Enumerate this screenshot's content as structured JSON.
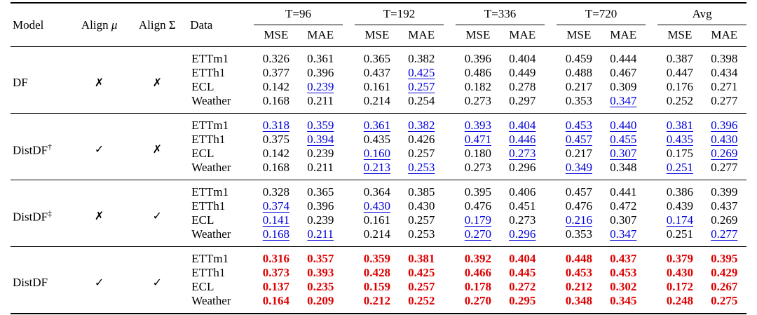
{
  "table": {
    "header": {
      "model": "Model",
      "align_mu": {
        "label": "Align",
        "symbol": "μ"
      },
      "align_sigma": {
        "label": "Align",
        "symbol": "Σ"
      },
      "data": "Data",
      "groups": [
        "T=96",
        "T=192",
        "T=336",
        "T=720",
        "Avg"
      ],
      "metrics": [
        "MSE",
        "MAE"
      ]
    },
    "colors": {
      "best": "#dd0000",
      "second_best": "#0000dd",
      "text": "#000000",
      "rule": "#000000"
    },
    "flags": {
      "yes": "✓",
      "no": "✗"
    },
    "blocks": [
      {
        "model": "DF",
        "model_sup": "",
        "align_mu": "✗",
        "align_sigma": "✗",
        "rows": [
          {
            "dataset": "ETTm1",
            "values": [
              "0.326",
              "0.361",
              "0.365",
              "0.382",
              "0.396",
              "0.404",
              "0.459",
              "0.444",
              "0.387",
              "0.398"
            ],
            "styles": [
              "n",
              "n",
              "n",
              "n",
              "n",
              "n",
              "n",
              "n",
              "n",
              "n"
            ]
          },
          {
            "dataset": "ETTh1",
            "values": [
              "0.377",
              "0.396",
              "0.437",
              "0.425",
              "0.486",
              "0.449",
              "0.488",
              "0.467",
              "0.447",
              "0.434"
            ],
            "styles": [
              "n",
              "n",
              "n",
              "u",
              "n",
              "n",
              "n",
              "n",
              "n",
              "n"
            ]
          },
          {
            "dataset": "ECL",
            "values": [
              "0.142",
              "0.239",
              "0.161",
              "0.257",
              "0.182",
              "0.278",
              "0.217",
              "0.309",
              "0.176",
              "0.271"
            ],
            "styles": [
              "n",
              "u",
              "n",
              "u",
              "n",
              "n",
              "n",
              "n",
              "n",
              "n"
            ]
          },
          {
            "dataset": "Weather",
            "values": [
              "0.168",
              "0.211",
              "0.214",
              "0.254",
              "0.273",
              "0.297",
              "0.353",
              "0.347",
              "0.252",
              "0.277"
            ],
            "styles": [
              "n",
              "n",
              "n",
              "n",
              "n",
              "n",
              "n",
              "u",
              "n",
              "n"
            ]
          }
        ]
      },
      {
        "model": "DistDF",
        "model_sup": "†",
        "align_mu": "✓",
        "align_sigma": "✗",
        "rows": [
          {
            "dataset": "ETTm1",
            "values": [
              "0.318",
              "0.359",
              "0.361",
              "0.382",
              "0.393",
              "0.404",
              "0.453",
              "0.440",
              "0.381",
              "0.396"
            ],
            "styles": [
              "u",
              "u",
              "u",
              "u",
              "u",
              "u",
              "u",
              "u",
              "u",
              "u"
            ]
          },
          {
            "dataset": "ETTh1",
            "values": [
              "0.375",
              "0.394",
              "0.435",
              "0.426",
              "0.471",
              "0.446",
              "0.457",
              "0.455",
              "0.435",
              "0.430"
            ],
            "styles": [
              "n",
              "u",
              "n",
              "n",
              "u",
              "u",
              "u",
              "u",
              "u",
              "u"
            ]
          },
          {
            "dataset": "ECL",
            "values": [
              "0.142",
              "0.239",
              "0.160",
              "0.257",
              "0.180",
              "0.273",
              "0.217",
              "0.307",
              "0.175",
              "0.269"
            ],
            "styles": [
              "n",
              "n",
              "u",
              "n",
              "n",
              "u",
              "n",
              "u",
              "n",
              "u"
            ]
          },
          {
            "dataset": "Weather",
            "values": [
              "0.168",
              "0.211",
              "0.213",
              "0.253",
              "0.273",
              "0.296",
              "0.349",
              "0.348",
              "0.251",
              "0.277"
            ],
            "styles": [
              "n",
              "n",
              "u",
              "u",
              "n",
              "n",
              "u",
              "n",
              "u",
              "n"
            ]
          }
        ]
      },
      {
        "model": "DistDF",
        "model_sup": "‡",
        "align_mu": "✗",
        "align_sigma": "✓",
        "rows": [
          {
            "dataset": "ETTm1",
            "values": [
              "0.328",
              "0.365",
              "0.364",
              "0.385",
              "0.395",
              "0.406",
              "0.457",
              "0.441",
              "0.386",
              "0.399"
            ],
            "styles": [
              "n",
              "n",
              "n",
              "n",
              "n",
              "n",
              "n",
              "n",
              "n",
              "n"
            ]
          },
          {
            "dataset": "ETTh1",
            "values": [
              "0.374",
              "0.396",
              "0.430",
              "0.430",
              "0.476",
              "0.451",
              "0.476",
              "0.472",
              "0.439",
              "0.437"
            ],
            "styles": [
              "u",
              "n",
              "u",
              "n",
              "n",
              "n",
              "n",
              "n",
              "n",
              "n"
            ]
          },
          {
            "dataset": "ECL",
            "values": [
              "0.141",
              "0.239",
              "0.161",
              "0.257",
              "0.179",
              "0.273",
              "0.216",
              "0.307",
              "0.174",
              "0.269"
            ],
            "styles": [
              "u",
              "n",
              "n",
              "n",
              "u",
              "n",
              "u",
              "n",
              "u",
              "n"
            ]
          },
          {
            "dataset": "Weather",
            "values": [
              "0.168",
              "0.211",
              "0.214",
              "0.253",
              "0.270",
              "0.296",
              "0.353",
              "0.347",
              "0.251",
              "0.277"
            ],
            "styles": [
              "u",
              "u",
              "n",
              "n",
              "u",
              "u",
              "n",
              "u",
              "n",
              "u"
            ]
          }
        ]
      },
      {
        "model": "DistDF",
        "model_sup": "",
        "align_mu": "✓",
        "align_sigma": "✓",
        "rows": [
          {
            "dataset": "ETTm1",
            "values": [
              "0.316",
              "0.357",
              "0.359",
              "0.381",
              "0.392",
              "0.404",
              "0.448",
              "0.437",
              "0.379",
              "0.395"
            ],
            "styles": [
              "r",
              "r",
              "r",
              "r",
              "r",
              "r",
              "r",
              "r",
              "r",
              "r"
            ]
          },
          {
            "dataset": "ETTh1",
            "values": [
              "0.373",
              "0.393",
              "0.428",
              "0.425",
              "0.466",
              "0.445",
              "0.453",
              "0.453",
              "0.430",
              "0.429"
            ],
            "styles": [
              "r",
              "r",
              "r",
              "r",
              "r",
              "r",
              "r",
              "r",
              "r",
              "r"
            ]
          },
          {
            "dataset": "ECL",
            "values": [
              "0.137",
              "0.235",
              "0.159",
              "0.257",
              "0.178",
              "0.272",
              "0.212",
              "0.302",
              "0.172",
              "0.267"
            ],
            "styles": [
              "r",
              "r",
              "r",
              "r",
              "r",
              "r",
              "r",
              "r",
              "r",
              "r"
            ]
          },
          {
            "dataset": "Weather",
            "values": [
              "0.164",
              "0.209",
              "0.212",
              "0.252",
              "0.270",
              "0.295",
              "0.348",
              "0.345",
              "0.248",
              "0.275"
            ],
            "styles": [
              "r",
              "r",
              "r",
              "r",
              "r",
              "r",
              "r",
              "r",
              "r",
              "r"
            ]
          }
        ]
      }
    ]
  }
}
